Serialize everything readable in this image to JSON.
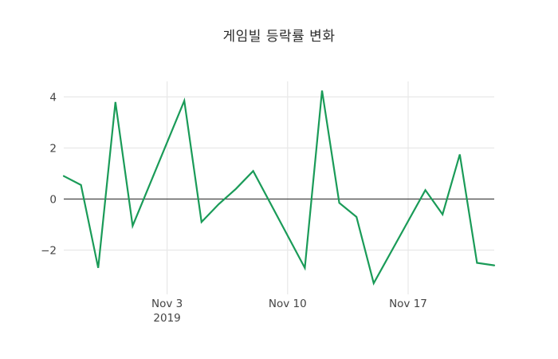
{
  "chart_data": {
    "type": "line",
    "title": "게임빌 등락률 변화",
    "xlabel": "",
    "ylabel": "",
    "x": [
      "2019-10-28",
      "2019-10-29",
      "2019-10-30",
      "2019-10-31",
      "2019-11-01",
      "2019-11-04",
      "2019-11-05",
      "2019-11-06",
      "2019-11-07",
      "2019-11-08",
      "2019-11-11",
      "2019-11-12",
      "2019-11-13",
      "2019-11-14",
      "2019-11-15",
      "2019-11-18",
      "2019-11-19",
      "2019-11-20",
      "2019-11-21",
      "2019-11-22"
    ],
    "values": [
      0.9,
      0.55,
      -2.7,
      3.8,
      -1.05,
      3.85,
      -0.9,
      -0.2,
      0.4,
      1.1,
      -2.7,
      4.25,
      -0.15,
      -0.7,
      -3.3,
      0.35,
      -0.6,
      1.75,
      -2.5,
      -2.6
    ],
    "ylim": [
      -3.58,
      4.61
    ],
    "grid": true,
    "legend": "none",
    "yticks": [
      {
        "value": 4,
        "label": "4"
      },
      {
        "value": 2,
        "label": "2"
      },
      {
        "value": 0,
        "label": "0"
      },
      {
        "value": -2,
        "label": "−2"
      }
    ],
    "xticks": [
      {
        "date": "2019-11-03",
        "label": "Nov 3",
        "sublabel": "2019"
      },
      {
        "date": "2019-11-10",
        "label": "Nov 10",
        "sublabel": ""
      },
      {
        "date": "2019-11-17",
        "label": "Nov 17",
        "sublabel": ""
      }
    ],
    "colors": {
      "line": "#1a9b58",
      "grid": "#e8e8e8",
      "zeroline": "#444444",
      "tick_text": "#444444",
      "background": "#ffffff"
    }
  }
}
